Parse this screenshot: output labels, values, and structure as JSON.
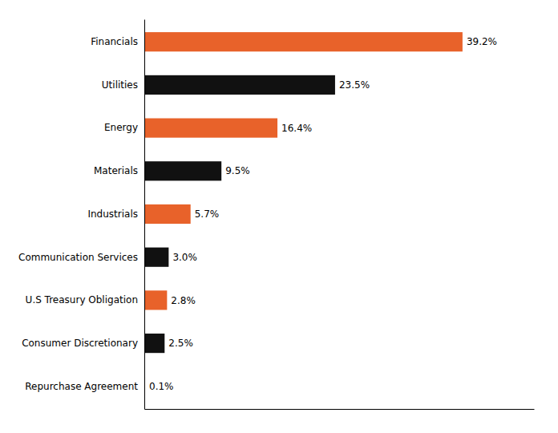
{
  "chart_data": {
    "type": "bar",
    "orientation": "horizontal",
    "categories": [
      "Repurchase Agreement",
      "Consumer Discretionary",
      "U.S Treasury Obligation",
      "Communication Services",
      "Industrials",
      "Materials",
      "Energy",
      "Utilities",
      "Financials"
    ],
    "values": [
      0.1,
      2.5,
      2.8,
      3.0,
      5.7,
      9.5,
      16.4,
      23.5,
      39.2
    ],
    "value_labels": [
      "0.1%",
      "2.5%",
      "2.8%",
      "3.0%",
      "5.7%",
      "9.5%",
      "16.4%",
      "23.5%",
      "39.2%"
    ],
    "colors": [
      "#E8622A",
      "#111111",
      "#E8622A",
      "#111111",
      "#E8622A",
      "#111111",
      "#E8622A",
      "#111111",
      "#E8622A"
    ],
    "xlim": [
      0,
      48
    ],
    "data_labels": true,
    "tick_labels": "y"
  }
}
